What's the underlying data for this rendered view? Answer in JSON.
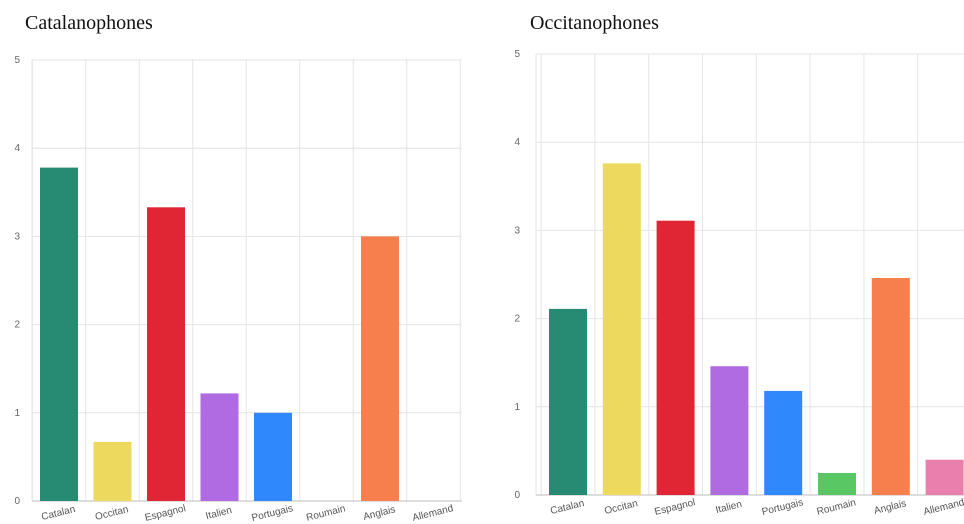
{
  "chart_data": [
    {
      "type": "bar",
      "title": "Catalanophones",
      "categories": [
        "Catalan",
        "Occitan",
        "Espagnol",
        "Italien",
        "Portugais",
        "Roumain",
        "Anglais",
        "Allemand"
      ],
      "values": [
        3.78,
        0.67,
        3.33,
        1.22,
        1.0,
        0,
        3.0,
        0
      ],
      "ylim": [
        0,
        5
      ],
      "yticks": [
        "0",
        "1",
        "2",
        "3",
        "4",
        "5"
      ],
      "grid": true,
      "colors": [
        "#268b72",
        "#ecd95d",
        "#e02535",
        "#b06be3",
        "#2f89fc",
        "#5ac765",
        "#f67f4d",
        "#e97fad"
      ]
    },
    {
      "type": "bar",
      "title": "Occitanophones",
      "categories": [
        "Catalan",
        "Occitan",
        "Espagnol",
        "Italien",
        "Portugais",
        "Roumain",
        "Anglais",
        "Allemand"
      ],
      "values": [
        2.11,
        3.76,
        3.11,
        1.46,
        1.18,
        0.25,
        2.46,
        0.4
      ],
      "ylim": [
        0,
        5
      ],
      "yticks": [
        "0",
        "1",
        "2",
        "3",
        "4",
        "5"
      ],
      "grid": true,
      "colors": [
        "#268b72",
        "#ecd95d",
        "#e02535",
        "#b06be3",
        "#2f89fc",
        "#5ac765",
        "#f67f4d",
        "#e97fad"
      ]
    }
  ]
}
